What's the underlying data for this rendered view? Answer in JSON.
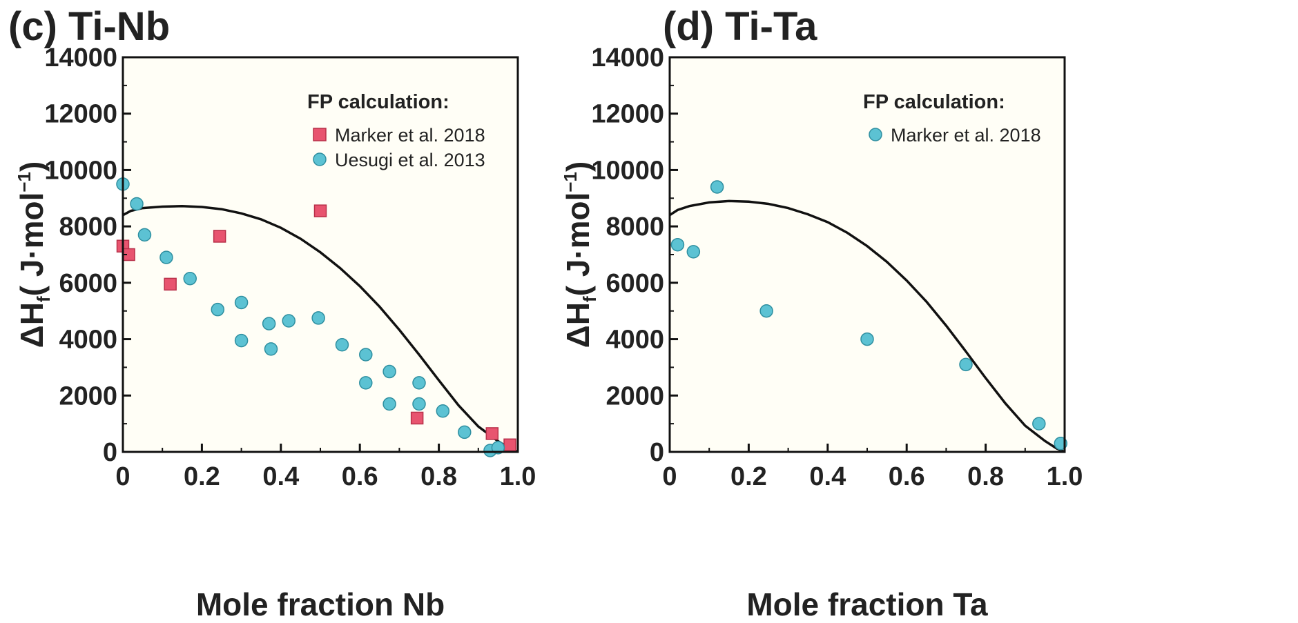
{
  "chart_data": [
    {
      "panel": "(c) Ti-Nb",
      "type": "scatter",
      "xlabel": "Mole fraction Nb",
      "ylabel_main": "ΔH",
      "ylabel_sub": "f",
      "ylabel_unit_open": "( J·mol",
      "ylabel_sup": "−1",
      "ylabel_close": ")",
      "xlim": [
        0,
        1.0
      ],
      "ylim": [
        0,
        14000
      ],
      "xticks": [
        "0",
        "0.2",
        "0.4",
        "0.6",
        "0.8",
        "1.0"
      ],
      "xtick_values": [
        0,
        0.2,
        0.4,
        0.6,
        0.8,
        1.0
      ],
      "yticks": [
        "0",
        "2000",
        "4000",
        "6000",
        "8000",
        "10000",
        "12000",
        "14000"
      ],
      "ytick_values": [
        0,
        2000,
        4000,
        6000,
        8000,
        10000,
        12000,
        14000
      ],
      "legend_title": "FP calculation:",
      "legend_position": "top-right",
      "curve": {
        "name": "fit",
        "x": [
          0.0,
          0.02,
          0.05,
          0.1,
          0.15,
          0.2,
          0.25,
          0.3,
          0.35,
          0.4,
          0.45,
          0.5,
          0.55,
          0.6,
          0.65,
          0.7,
          0.75,
          0.8,
          0.85,
          0.9,
          0.95,
          0.98,
          1.0
        ],
        "y": [
          8400,
          8550,
          8650,
          8700,
          8720,
          8690,
          8610,
          8460,
          8250,
          7950,
          7560,
          7080,
          6520,
          5880,
          5150,
          4330,
          3450,
          2540,
          1650,
          900,
          380,
          120,
          0
        ]
      },
      "series": [
        {
          "name": "Marker et al. 2018",
          "marker": "square",
          "color": "#e8546f",
          "edge": "#b83049",
          "x": [
            0.0,
            0.015,
            0.12,
            0.245,
            0.5,
            0.745,
            0.935,
            0.98
          ],
          "y": [
            7300,
            7000,
            5950,
            7650,
            8550,
            1200,
            650,
            250
          ]
        },
        {
          "name": "Uesugi et al. 2013",
          "marker": "circle",
          "color": "#5cc2d3",
          "edge": "#2f8fa0",
          "x": [
            0.0,
            0.035,
            0.055,
            0.11,
            0.17,
            0.24,
            0.3,
            0.3,
            0.37,
            0.375,
            0.42,
            0.495,
            0.555,
            0.615,
            0.615,
            0.675,
            0.675,
            0.75,
            0.75,
            0.81,
            0.865,
            0.93,
            0.95
          ],
          "y": [
            9500,
            8800,
            7700,
            6900,
            6150,
            5050,
            5300,
            3950,
            4550,
            3650,
            4650,
            4750,
            3800,
            3450,
            2450,
            2850,
            1700,
            2450,
            1700,
            1450,
            700,
            50,
            150
          ]
        }
      ]
    },
    {
      "panel": "(d) Ti-Ta",
      "type": "scatter",
      "xlabel": "Mole fraction Ta",
      "ylabel_main": "ΔH",
      "ylabel_sub": "f",
      "ylabel_unit_open": "( J·mol",
      "ylabel_sup": "−1",
      "ylabel_close": ")",
      "xlim": [
        0,
        1.0
      ],
      "ylim": [
        0,
        14000
      ],
      "xticks": [
        "0",
        "0.2",
        "0.4",
        "0.6",
        "0.8",
        "1.0"
      ],
      "xtick_values": [
        0,
        0.2,
        0.4,
        0.6,
        0.8,
        1.0
      ],
      "yticks": [
        "0",
        "2000",
        "4000",
        "6000",
        "8000",
        "10000",
        "12000",
        "14000"
      ],
      "ytick_values": [
        0,
        2000,
        4000,
        6000,
        8000,
        10000,
        12000,
        14000
      ],
      "legend_title": "FP calculation:",
      "legend_position": "top-right",
      "curve": {
        "name": "fit",
        "x": [
          0.0,
          0.02,
          0.05,
          0.1,
          0.15,
          0.2,
          0.25,
          0.3,
          0.35,
          0.4,
          0.45,
          0.5,
          0.55,
          0.6,
          0.65,
          0.7,
          0.75,
          0.8,
          0.85,
          0.9,
          0.95,
          0.98,
          1.0
        ],
        "y": [
          8400,
          8580,
          8720,
          8850,
          8900,
          8880,
          8800,
          8650,
          8430,
          8150,
          7770,
          7300,
          6740,
          6080,
          5330,
          4480,
          3560,
          2620,
          1720,
          930,
          390,
          120,
          0
        ]
      },
      "series": [
        {
          "name": "Marker et al. 2018",
          "marker": "circle",
          "color": "#5cc2d3",
          "edge": "#2f8fa0",
          "x": [
            0.02,
            0.06,
            0.12,
            0.245,
            0.5,
            0.75,
            0.935,
            0.99
          ],
          "y": [
            7350,
            7100,
            9400,
            5000,
            4000,
            3100,
            1000,
            300
          ]
        }
      ]
    }
  ]
}
